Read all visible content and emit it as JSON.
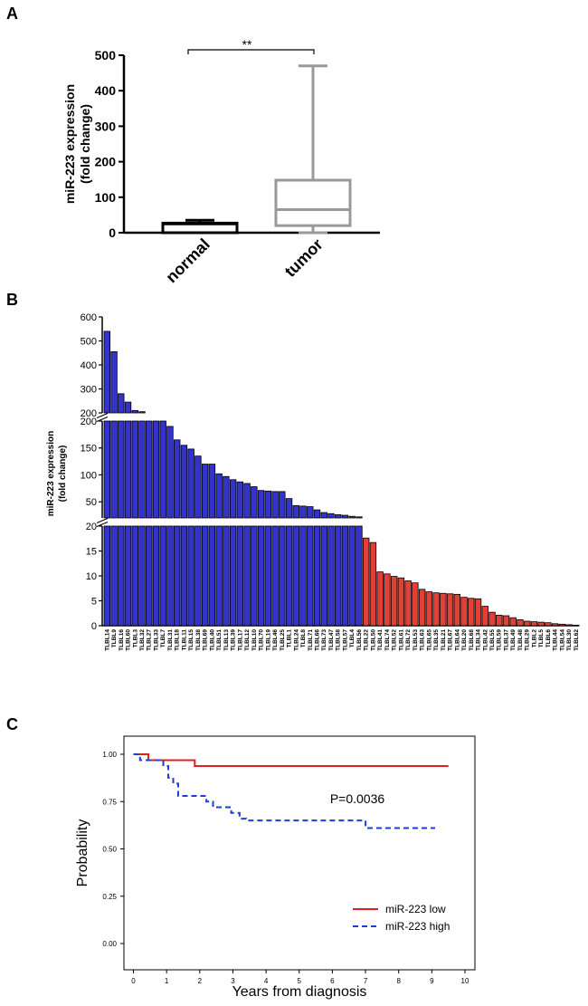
{
  "panels": {
    "a": "A",
    "b": "B",
    "c": "C"
  },
  "chart_data": [
    {
      "panel": "A",
      "type": "boxplot",
      "ylabel": "miR-223 expression (fold change)",
      "ylabel_lines": [
        "miR-223 expression",
        "(fold change)"
      ],
      "ylim": [
        0,
        500
      ],
      "yticks": [
        0,
        100,
        200,
        300,
        400,
        500
      ],
      "categories": [
        "normal",
        "tumor"
      ],
      "boxes": [
        {
          "name": "normal",
          "min": 0,
          "q1": 0,
          "median": 25,
          "q3": 27,
          "max": 35,
          "color": "#000000"
        },
        {
          "name": "tumor",
          "min": 0,
          "q1": 20,
          "median": 65,
          "q3": 148,
          "max": 470,
          "color": "#999999"
        }
      ],
      "significance": "**",
      "grid": false
    },
    {
      "panel": "B",
      "type": "bar",
      "ylabel": "miR-223 expression (fold change)",
      "ylabel_lines": [
        "miR-223 expression",
        "(fold change)"
      ],
      "axis_segments": [
        {
          "ylim": [
            200,
            600
          ],
          "yticks": [
            200,
            300,
            400,
            500,
            600
          ]
        },
        {
          "ylim": [
            20,
            200
          ],
          "yticks": [
            50,
            100,
            150,
            200
          ]
        },
        {
          "ylim": [
            0,
            20
          ],
          "yticks": [
            0,
            5,
            10,
            15,
            20
          ]
        }
      ],
      "categories": [
        "TLBL14",
        "TLBL9",
        "TLBL16",
        "TLBL60",
        "TLBL3",
        "TLBL32",
        "TLBL27",
        "TLBL33",
        "TLBL7",
        "TLBL31",
        "TLBL18",
        "TLBL11",
        "TLBL15",
        "TLBL38",
        "TLBL69",
        "TLBL40",
        "TLBL51",
        "TLBL13",
        "TLBL39",
        "TLBL17",
        "TLBL12",
        "TLBL10",
        "TLBL70",
        "TLBL19",
        "TLBL46",
        "TLBL25",
        "TLBL1",
        "TLBL24",
        "TLBL8",
        "TLBL71",
        "TLBL66",
        "TLBL73",
        "TLBL47",
        "TLBL58",
        "TLBL57",
        "TLBL4",
        "TLBL56",
        "TLBL22",
        "TLBL50",
        "TLBL41",
        "TLBL74",
        "TLBL52",
        "TLBL61",
        "TLBL72",
        "TLBL53",
        "TLBL63",
        "TLBL65",
        "TLBL35",
        "TLBL21",
        "TLBL67",
        "TLBL64",
        "TLBL20",
        "TLBL68",
        "TLBL34",
        "TLBL42",
        "TLBL55",
        "TLBL59",
        "TLBL37",
        "TLBL49",
        "TLBL48",
        "TLBL29",
        "TLBL2",
        "TLBL5",
        "TLBL6",
        "TLBL44",
        "TLBL54",
        "TLBL30",
        "TLBL62"
      ],
      "values": [
        540,
        455,
        280,
        245,
        210,
        205,
        200,
        200,
        200,
        190,
        165,
        155,
        148,
        135,
        120,
        120,
        102,
        97,
        91,
        87,
        84,
        78,
        71,
        70,
        69,
        69,
        56,
        43,
        42,
        41,
        35,
        30,
        28,
        26,
        25,
        23,
        22,
        17.6,
        16.7,
        10.8,
        10.4,
        9.9,
        9.6,
        9.0,
        8.6,
        7.3,
        6.8,
        6.6,
        6.5,
        6.4,
        6.3,
        5.7,
        5.5,
        5.4,
        3.9,
        2.7,
        2.1,
        2.0,
        1.6,
        1.2,
        0.9,
        0.8,
        0.7,
        0.6,
        0.4,
        0.3,
        0.2,
        0.1
      ],
      "colors": {
        "high": "#3333cc",
        "low": "#e04035"
      },
      "n_high": 37,
      "grid": false
    },
    {
      "panel": "C",
      "type": "line",
      "subtype": "kaplan-meier",
      "xlabel": "Years from diagnosis",
      "ylabel": "Probability",
      "xlim": [
        0,
        10
      ],
      "ylim": [
        0,
        1
      ],
      "xticks": [
        0,
        1,
        2,
        3,
        4,
        5,
        6,
        7,
        8,
        9,
        10
      ],
      "yticks": [
        "0.00",
        "0.25",
        "0.50",
        "0.75",
        "1.00"
      ],
      "annotation": "P=0.0036",
      "legend_position": "bottom-right",
      "series": [
        {
          "name": "miR-223 low",
          "color": "#e02020",
          "style": "solid",
          "x": [
            0,
            0.45,
            0.45,
            1.85,
            1.85,
            9.5
          ],
          "y": [
            1.0,
            1.0,
            0.969,
            0.969,
            0.938,
            0.938
          ]
        },
        {
          "name": "miR-223 high",
          "color": "#1a3fd6",
          "style": "dashed",
          "x": [
            0,
            0.2,
            0.2,
            0.9,
            0.9,
            1.05,
            1.05,
            1.2,
            1.2,
            1.35,
            1.35,
            2.2,
            2.2,
            2.4,
            2.4,
            2.95,
            2.95,
            3.2,
            3.2,
            3.4,
            3.4,
            7.0,
            7.0,
            9.1
          ],
          "y": [
            1.0,
            1.0,
            0.969,
            0.969,
            0.938,
            0.938,
            0.876,
            0.876,
            0.845,
            0.845,
            0.78,
            0.78,
            0.75,
            0.75,
            0.72,
            0.72,
            0.69,
            0.69,
            0.66,
            0.66,
            0.65,
            0.65,
            0.61,
            0.61
          ]
        }
      ]
    }
  ]
}
